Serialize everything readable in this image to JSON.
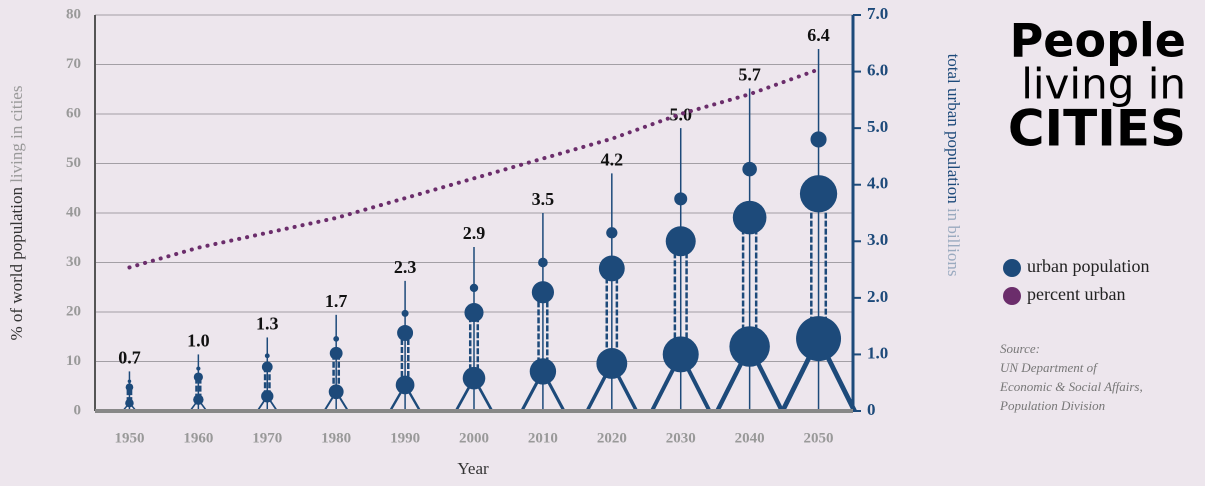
{
  "chart_data": {
    "type": "tower",
    "title_lines": [
      "People",
      "living in",
      "CITIES"
    ],
    "xlabel": "Year",
    "ylabel": "% of world population",
    "ylabel_note": "living in cities",
    "y2label": "total urban population",
    "y2label_note": "in billions",
    "x": [
      1950,
      1960,
      1970,
      1980,
      1990,
      2000,
      2010,
      2020,
      2030,
      2040,
      2050
    ],
    "xlim": [
      1945,
      2055
    ],
    "series": [
      {
        "name": "urban population",
        "color": "#1d4a7a",
        "axis": "y2",
        "values": [
          0.7,
          1.0,
          1.3,
          1.7,
          2.3,
          2.9,
          3.5,
          4.2,
          5.0,
          5.7,
          6.4
        ],
        "value_labels": [
          "0.7",
          "1.0",
          "1.3",
          "1.7",
          "2.3",
          "2.9",
          "3.5",
          "4.2",
          "5.0",
          "5.7",
          "6.4"
        ]
      },
      {
        "name": "percent urban",
        "color": "#6b2d6b",
        "values": [
          29,
          33,
          36,
          39,
          43,
          47,
          51,
          55,
          60,
          64,
          69
        ]
      }
    ],
    "ylim": [
      0,
      80
    ],
    "yticks": [
      0,
      10,
      20,
      30,
      40,
      50,
      60,
      70,
      80
    ],
    "y2lim": [
      0,
      7
    ],
    "y2ticks": [
      0,
      {
        "value": 1,
        "label": "1.0"
      },
      {
        "value": 2,
        "label": "2.0"
      },
      {
        "value": 3,
        "label": "3.0"
      },
      {
        "value": 4,
        "label": "4.0"
      },
      {
        "value": 5,
        "label": "5.0"
      },
      {
        "value": 6,
        "label": "6.0"
      },
      {
        "value": 7,
        "label": "7.0"
      }
    ],
    "grid": true,
    "source": [
      "Source:",
      "UN Department of",
      "Economic & Social Affairs,",
      "Population Division"
    ]
  }
}
